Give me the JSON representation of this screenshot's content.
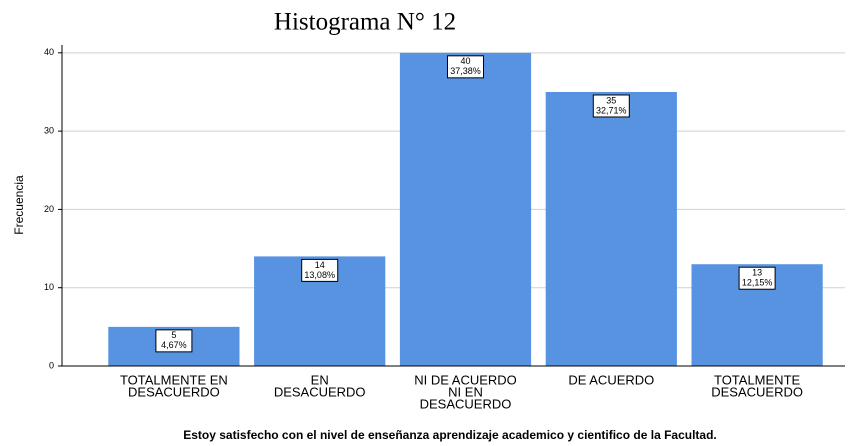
{
  "chart_data": {
    "type": "bar",
    "title": "Histograma N° 12",
    "x_label": "Estoy satisfecho con el nivel de enseñanza aprendizaje academico y cientifico de la Facultad.",
    "y_label": "Frecuencia",
    "categories": [
      [
        "TOTALMENTE EN",
        "DESACUERDO"
      ],
      [
        "EN",
        "DESACUERDO"
      ],
      [
        "NI DE ACUERDO",
        "NI EN",
        "DESACUERDO"
      ],
      [
        "DE ACUERDO"
      ],
      [
        "TOTALMENTE",
        "DESACUERDO"
      ]
    ],
    "values": [
      5,
      14,
      40,
      35,
      13
    ],
    "percentages": [
      4.67,
      13.08,
      37.38,
      32.71,
      12.15
    ],
    "percentage_labels": [
      "4,67%",
      "13,08%",
      "37,38%",
      "32,71%",
      "12,15%"
    ],
    "color": "#5893e2",
    "ylim": [
      0,
      41
    ],
    "yticks": [
      0,
      10,
      20,
      30,
      40
    ],
    "grid": true
  }
}
